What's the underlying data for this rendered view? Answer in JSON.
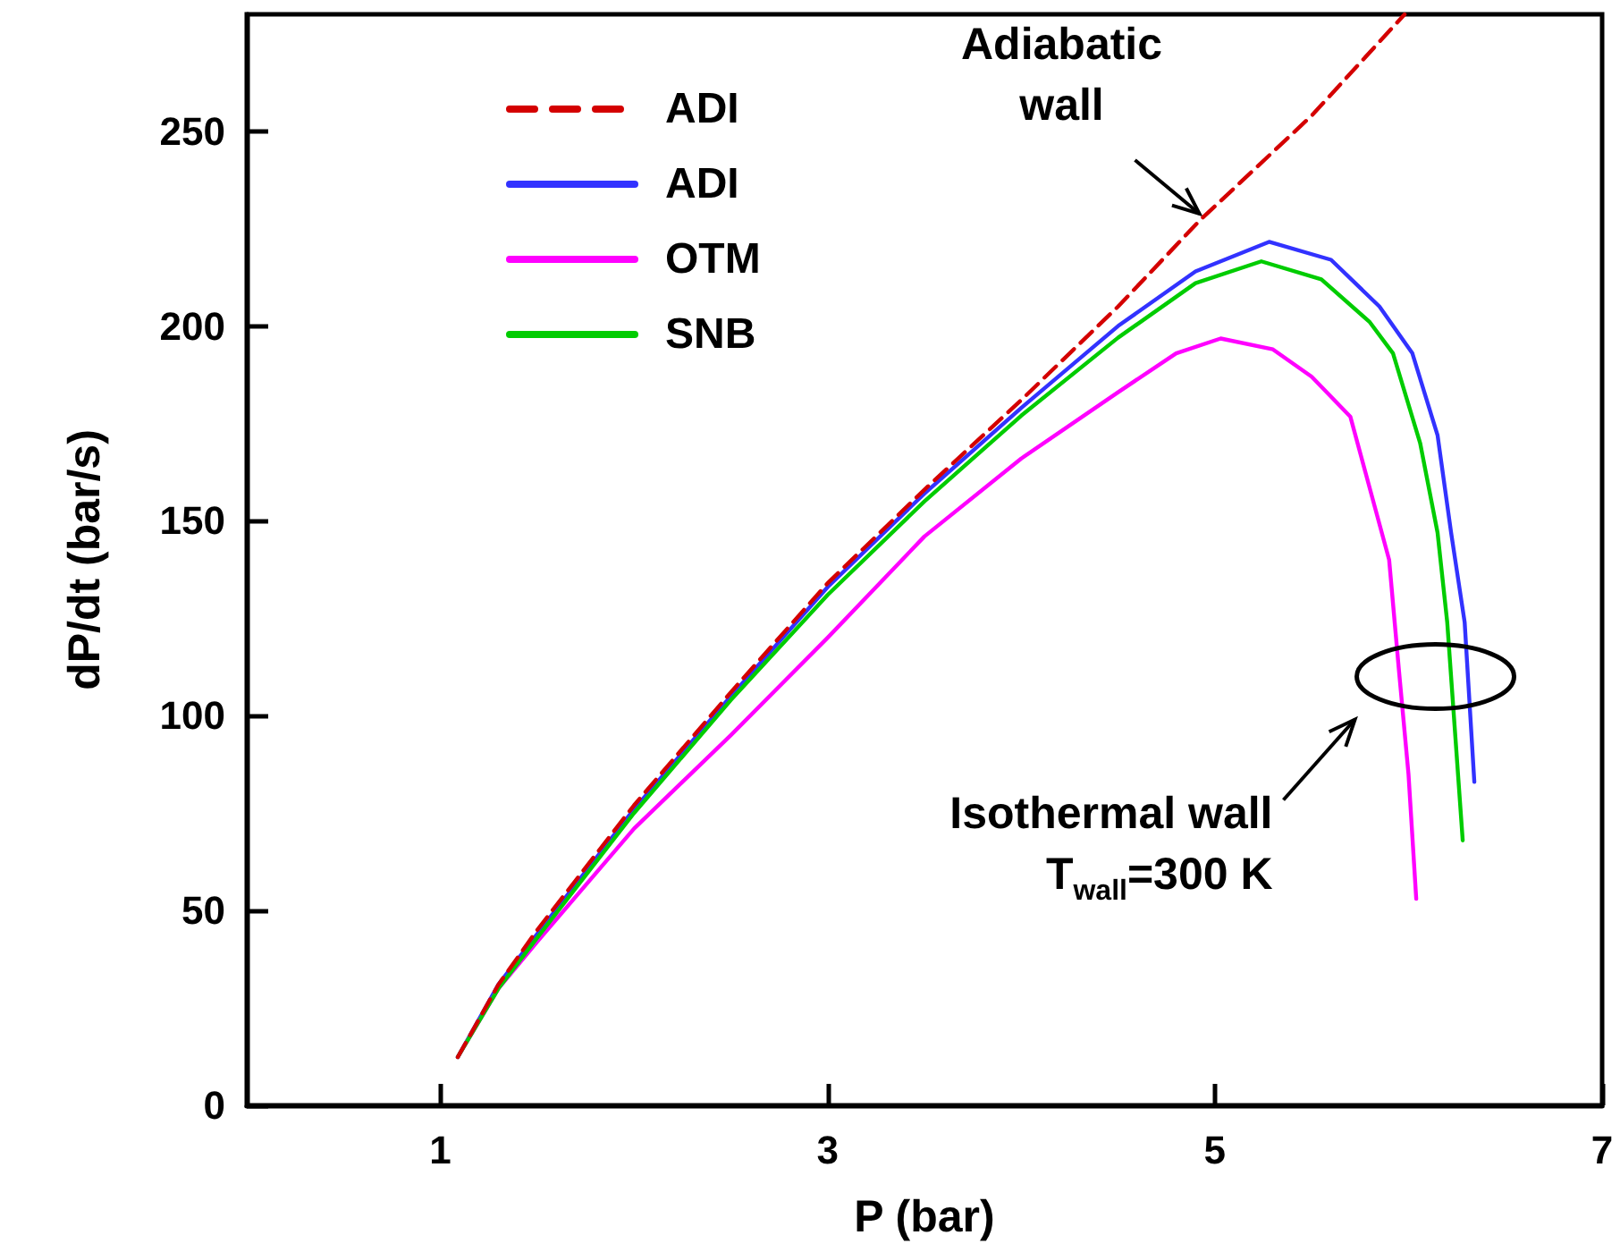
{
  "chart_data": {
    "type": "line",
    "xlabel": "P (bar)",
    "ylabel": "dP/dt (bar/s)",
    "xlim": [
      0,
      7
    ],
    "xticks": [
      1,
      3,
      5,
      7
    ],
    "ylim": [
      0,
      280
    ],
    "yticks": [
      0,
      50,
      100,
      150,
      200,
      250
    ],
    "grid": false,
    "legend": "top left",
    "marker": "none",
    "annotations": [
      {
        "text": "Adiabatic\nwall",
        "x": 4.92,
        "y": 227
      },
      "Isothermal wall\nT$_{wall}$=300 K"
    ],
    "series": [
      {
        "name": "ADI",
        "color": "#d40000",
        "line_style": "dashed",
        "x": [
          1.09,
          1.3,
          1.5,
          2,
          2.5,
          3,
          3.5,
          4,
          4.5,
          4.92,
          5.5,
          5.98
        ],
        "values": [
          12.4,
          31,
          45,
          77,
          106,
          134,
          158,
          181,
          205,
          227,
          254,
          280
        ]
      },
      {
        "name": "ADI",
        "color": "#3232ff",
        "line_style": "solid",
        "x": [
          1.09,
          1.3,
          1.5,
          2,
          2.5,
          3,
          3.5,
          4,
          4.5,
          4.9,
          5.28,
          5.6,
          5.85,
          6.02,
          6.15,
          6.22,
          6.29,
          6.34
        ],
        "values": [
          12.4,
          31,
          44,
          76,
          105,
          133,
          157,
          179,
          200,
          214,
          221.6,
          217,
          205,
          193,
          172,
          147,
          124,
          83
        ]
      },
      {
        "name": "OTM",
        "color": "#ff00ff",
        "line_style": "solid",
        "x": [
          1.09,
          1.3,
          1.5,
          2,
          2.5,
          3,
          3.5,
          4,
          4.5,
          4.8,
          5.03,
          5.3,
          5.5,
          5.7,
          5.9,
          5.95,
          6.0,
          6.04
        ],
        "values": [
          12.4,
          30,
          42,
          71,
          95,
          120,
          146,
          166,
          183,
          193,
          196.8,
          194,
          187,
          176.7,
          140,
          112,
          85,
          53
        ]
      },
      {
        "name": "SNB",
        "color": "#00cc00",
        "line_style": "solid",
        "x": [
          1.09,
          1.3,
          1.5,
          2,
          2.5,
          3,
          3.5,
          4,
          4.5,
          4.9,
          5.24,
          5.55,
          5.8,
          5.92,
          6.06,
          6.15,
          6.2,
          6.28
        ],
        "values": [
          12.4,
          30,
          43,
          75,
          104,
          131,
          155,
          177,
          197,
          211,
          216.6,
          212,
          201,
          193,
          170,
          147,
          124,
          68
        ]
      }
    ]
  }
}
